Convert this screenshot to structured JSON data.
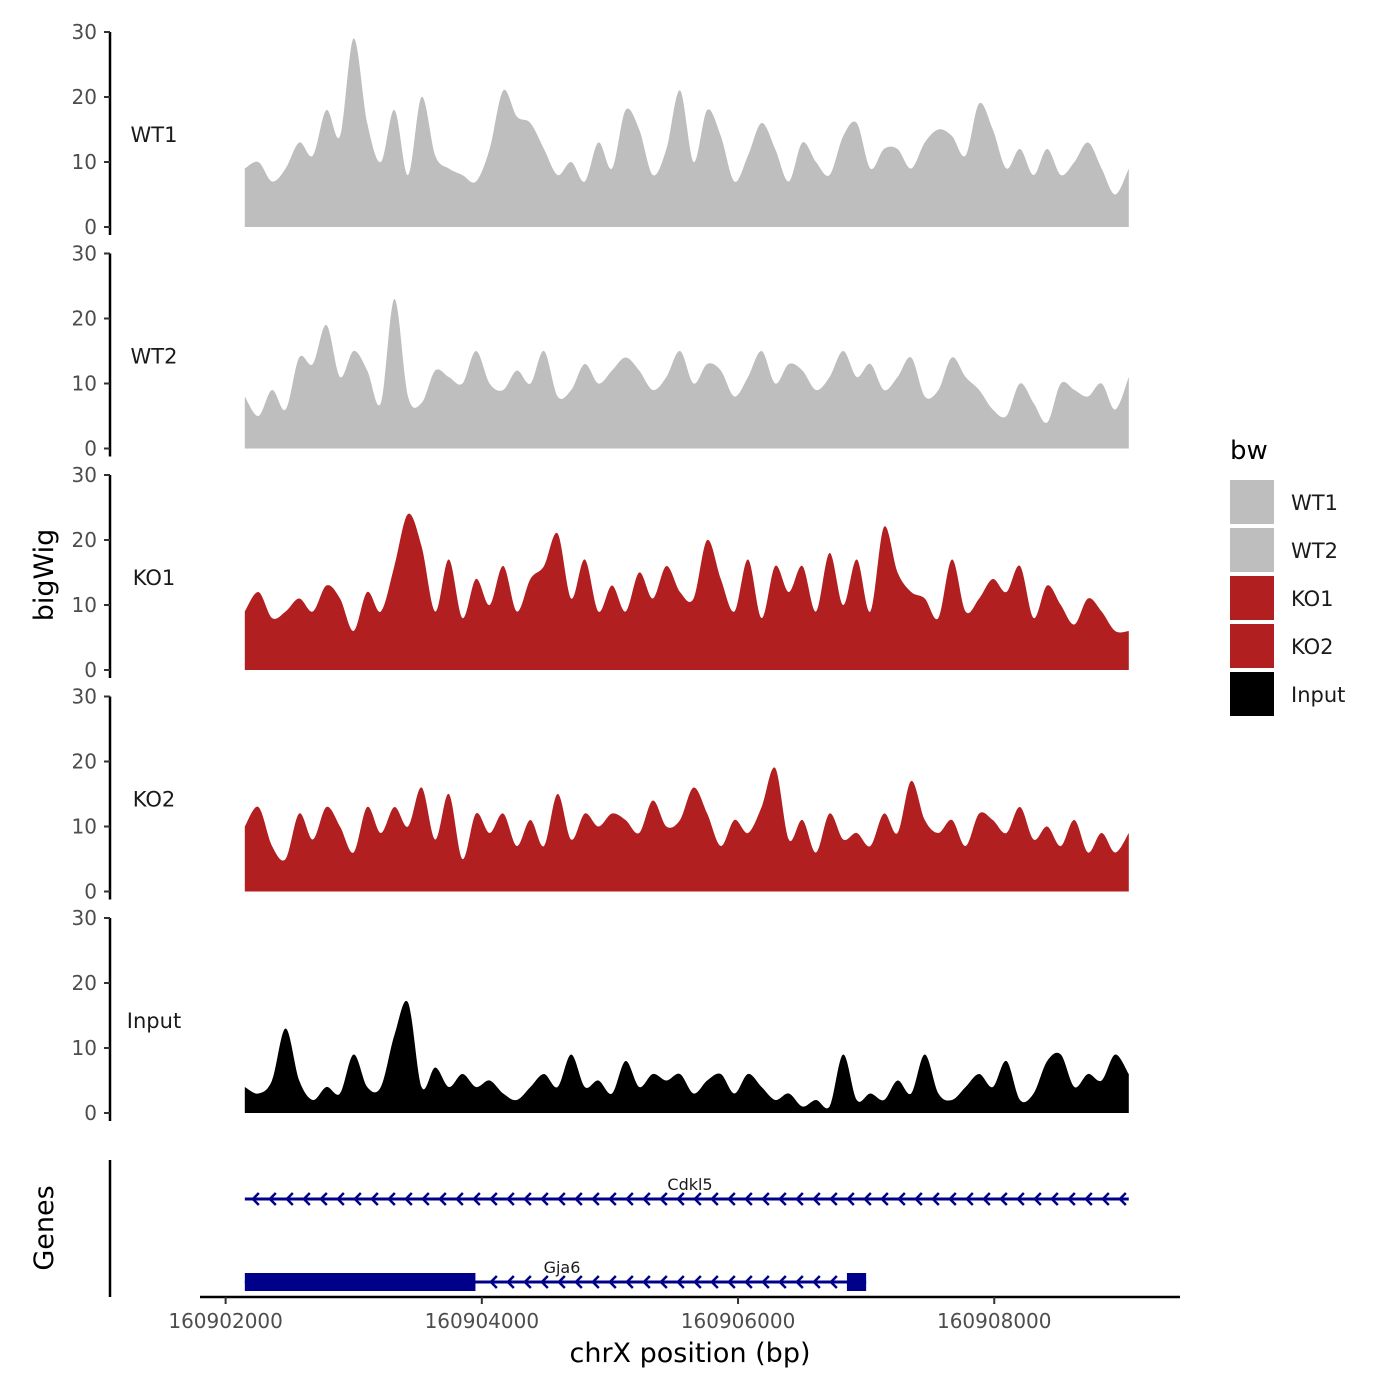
{
  "chart_data": {
    "type": "area",
    "ylabel": "bigWig",
    "genes_label": "Genes",
    "xlabel": "chrX position (bp)",
    "ylim": [
      0,
      30
    ],
    "y_ticks": [
      "0",
      "10",
      "20",
      "30"
    ],
    "x_range": [
      160901800,
      160909450
    ],
    "data_range": [
      160902150,
      160909050
    ],
    "x_ticks": [
      {
        "value": 160902000,
        "label": "160902000"
      },
      {
        "value": 160904000,
        "label": "160904000"
      },
      {
        "value": 160906000,
        "label": "160906000"
      },
      {
        "value": 160908000,
        "label": "160908000"
      }
    ],
    "series": [
      {
        "name": "WT1",
        "color": "#bebebe",
        "values": [
          9,
          10,
          7,
          9,
          13,
          11,
          18,
          14,
          29,
          16,
          10,
          18,
          8,
          20,
          11,
          9,
          8,
          7,
          12,
          21,
          17,
          16,
          12,
          8,
          10,
          7,
          13,
          9,
          18,
          15,
          8,
          12,
          21,
          10,
          18,
          14,
          7,
          11,
          16,
          12,
          7,
          13,
          10,
          8,
          14,
          16,
          9,
          12,
          12,
          9,
          13,
          15,
          14,
          11,
          19,
          15,
          9,
          12,
          8,
          12,
          8,
          10,
          13,
          9,
          5,
          9
        ]
      },
      {
        "name": "WT2",
        "color": "#bebebe",
        "values": [
          8,
          5,
          9,
          6,
          14,
          13,
          19,
          11,
          15,
          12,
          7,
          23,
          8,
          7,
          12,
          11,
          10,
          15,
          10,
          9,
          12,
          10,
          15,
          8,
          9,
          13,
          10,
          12,
          14,
          12,
          9,
          11,
          15,
          10,
          13,
          12,
          8,
          11,
          15,
          10,
          13,
          12,
          9,
          11,
          15,
          11,
          13,
          9,
          11,
          14,
          8,
          9,
          14,
          11,
          9,
          6,
          5,
          10,
          7,
          4,
          10,
          9,
          8,
          10,
          6,
          11
        ]
      },
      {
        "name": "KO1",
        "color": "#b21f20",
        "values": [
          9,
          12,
          8,
          9,
          11,
          9,
          13,
          11,
          6,
          12,
          9,
          16,
          24,
          19,
          9,
          17,
          8,
          14,
          10,
          16,
          9,
          14,
          16,
          21,
          11,
          17,
          9,
          13,
          9,
          15,
          11,
          16,
          12,
          11,
          20,
          14,
          9,
          17,
          8,
          16,
          12,
          16,
          9,
          18,
          10,
          17,
          9,
          22,
          15,
          12,
          11,
          8,
          17,
          9,
          11,
          14,
          12,
          16,
          8,
          13,
          10,
          7,
          11,
          9,
          6,
          6
        ]
      },
      {
        "name": "KO2",
        "color": "#b21f20",
        "values": [
          10,
          13,
          7,
          5,
          12,
          8,
          13,
          10,
          6,
          13,
          9,
          13,
          10,
          16,
          8,
          15,
          5,
          12,
          9,
          12,
          7,
          11,
          7,
          15,
          8,
          12,
          10,
          12,
          11,
          9,
          14,
          10,
          11,
          16,
          12,
          7,
          11,
          9,
          13,
          19,
          8,
          11,
          6,
          12,
          8,
          9,
          7,
          12,
          9,
          17,
          11,
          9,
          11,
          7,
          12,
          11,
          9,
          13,
          8,
          10,
          7,
          11,
          6,
          9,
          6,
          9
        ]
      },
      {
        "name": "Input",
        "color": "#000000",
        "values": [
          4,
          3,
          5,
          13,
          5,
          2,
          4,
          3,
          9,
          4,
          4,
          12,
          17,
          4,
          7,
          4,
          6,
          4,
          5,
          3,
          2,
          4,
          6,
          4,
          9,
          4,
          5,
          3,
          8,
          4,
          6,
          5,
          6,
          3,
          5,
          6,
          3,
          6,
          4,
          2,
          3,
          1,
          2,
          1,
          9,
          2,
          3,
          2,
          5,
          3,
          9,
          3,
          2,
          4,
          6,
          4,
          8,
          2,
          3,
          8,
          9,
          4,
          6,
          5,
          9,
          6
        ]
      }
    ],
    "genes": [
      {
        "name": "Cdkl5",
        "start": 160902150,
        "end": 160909050,
        "strand": "-",
        "exons": []
      },
      {
        "name": "Gja6",
        "start": 160902150,
        "end": 160907000,
        "strand": "-",
        "exons": [
          [
            160902150,
            160903950
          ],
          [
            160906850,
            160907000
          ]
        ]
      }
    ],
    "gene_color": "#00008b",
    "legend": {
      "title": "bw",
      "entries": [
        "WT1",
        "WT2",
        "KO1",
        "KO2",
        "Input"
      ]
    }
  }
}
